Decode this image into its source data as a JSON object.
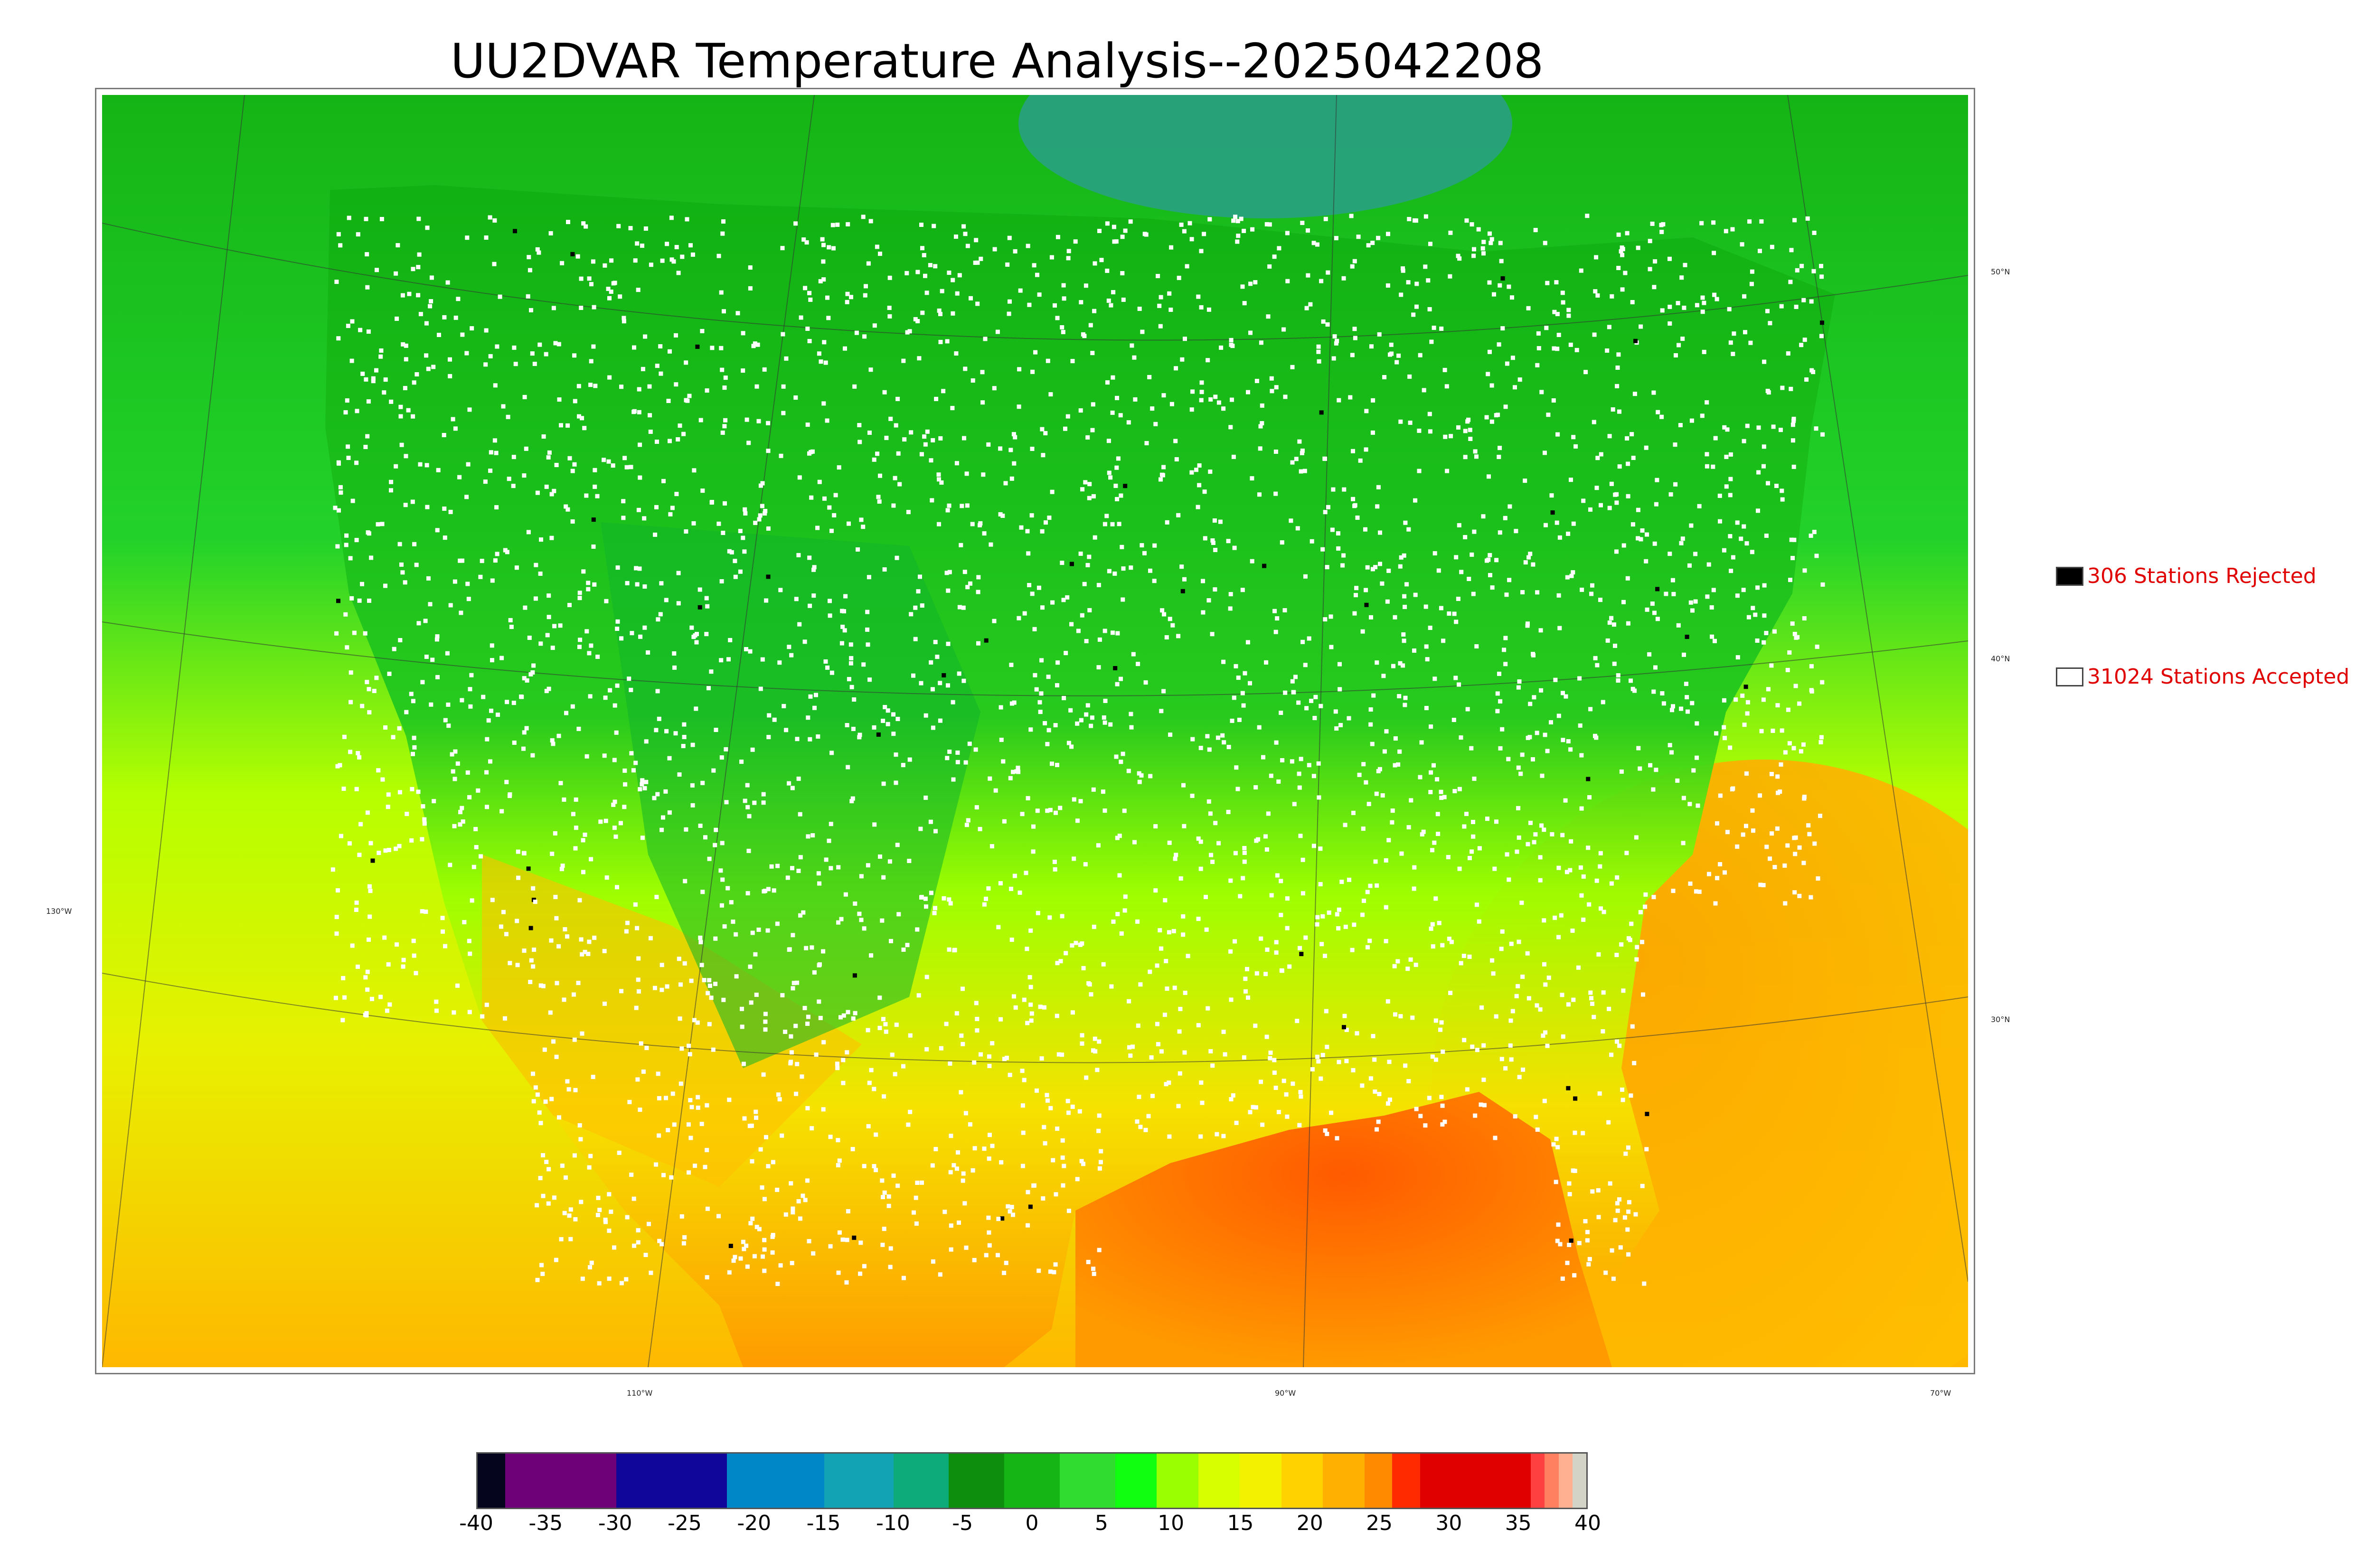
{
  "title": "UU2DVAR Temperature Analysis--2025042208",
  "legend": {
    "rejected": {
      "label": "306 Stations Rejected",
      "swatch_color": "#000000"
    },
    "accepted": {
      "label": "31024 Stations Accepted",
      "swatch_color": "#ffffff"
    }
  },
  "map": {
    "lat_labels": [
      "50°N",
      "40°N",
      "30°N"
    ],
    "lon_labels": [
      "130°W",
      "110°W",
      "90°W",
      "70°W"
    ],
    "colors": {
      "ocean_gulf": "#ff7a00",
      "land_cold": "#12c81a",
      "land_mid": "#7dff00",
      "land_warm": "#ffd000",
      "pacific": "#d4ff00",
      "canada": "#14b414",
      "hudson": "#2a9f6b",
      "station_accepted": "#ffffff",
      "station_rejected": "#000000"
    }
  },
  "colorbar": {
    "ticks": [
      "-40",
      "-35",
      "-30",
      "-25",
      "-20",
      "-15",
      "-10",
      "-5",
      "0",
      "5",
      "10",
      "15",
      "20",
      "25",
      "30",
      "35",
      "40"
    ],
    "range": [
      -40,
      40
    ],
    "segments": [
      {
        "from": -40,
        "to": -38,
        "color": "#05051e"
      },
      {
        "from": -38,
        "to": -30,
        "color": "#6e0078"
      },
      {
        "from": -30,
        "to": -22,
        "color": "#10069a"
      },
      {
        "from": -22,
        "to": -15,
        "color": "#0087c8"
      },
      {
        "from": -15,
        "to": -10,
        "color": "#12a4b4"
      },
      {
        "from": -10,
        "to": -6,
        "color": "#0eab7a"
      },
      {
        "from": -6,
        "to": -2,
        "color": "#0d8f0d"
      },
      {
        "from": -2,
        "to": 2,
        "color": "#16b516"
      },
      {
        "from": 2,
        "to": 6,
        "color": "#2fdc2f"
      },
      {
        "from": 6,
        "to": 9,
        "color": "#10ff10"
      },
      {
        "from": 9,
        "to": 12,
        "color": "#9aff00"
      },
      {
        "from": 12,
        "to": 15,
        "color": "#d7ff00"
      },
      {
        "from": 15,
        "to": 18,
        "color": "#f3f100"
      },
      {
        "from": 18,
        "to": 21,
        "color": "#ffd200"
      },
      {
        "from": 21,
        "to": 24,
        "color": "#ffb000"
      },
      {
        "from": 24,
        "to": 26,
        "color": "#ff8a00"
      },
      {
        "from": 26,
        "to": 28,
        "color": "#ff2a00"
      },
      {
        "from": 28,
        "to": 36,
        "color": "#e00000"
      },
      {
        "from": 36,
        "to": 37,
        "color": "#ff4040"
      },
      {
        "from": 37,
        "to": 38,
        "color": "#ff8060"
      },
      {
        "from": 38,
        "to": 39,
        "color": "#ffb090"
      },
      {
        "from": 39,
        "to": 40,
        "color": "#d3d3c8"
      }
    ]
  }
}
